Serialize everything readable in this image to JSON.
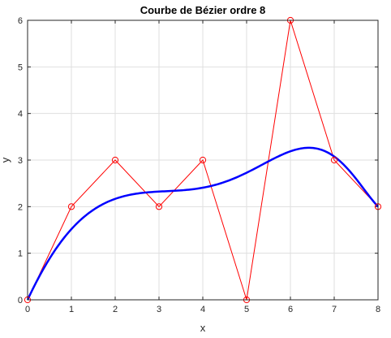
{
  "chart_data": {
    "type": "line",
    "title": "Courbe de Bézier ordre 8",
    "xlabel": "x",
    "ylabel": "y",
    "xlim": [
      0,
      8
    ],
    "ylim": [
      0,
      6
    ],
    "xticks": [
      "0",
      "1",
      "2",
      "3",
      "4",
      "5",
      "6",
      "7",
      "8"
    ],
    "yticks": [
      "0",
      "1",
      "2",
      "3",
      "4",
      "5",
      "6"
    ],
    "grid": true,
    "series": [
      {
        "kind": "control-polygon",
        "color": "#ff0000",
        "marker": "circle",
        "x": [
          0,
          1,
          2,
          3,
          4,
          5,
          6,
          7,
          8
        ],
        "y": [
          0,
          2,
          3,
          2,
          3,
          0,
          6,
          3,
          2
        ]
      },
      {
        "kind": "bezier-curve",
        "color": "#0000ff"
      }
    ]
  }
}
